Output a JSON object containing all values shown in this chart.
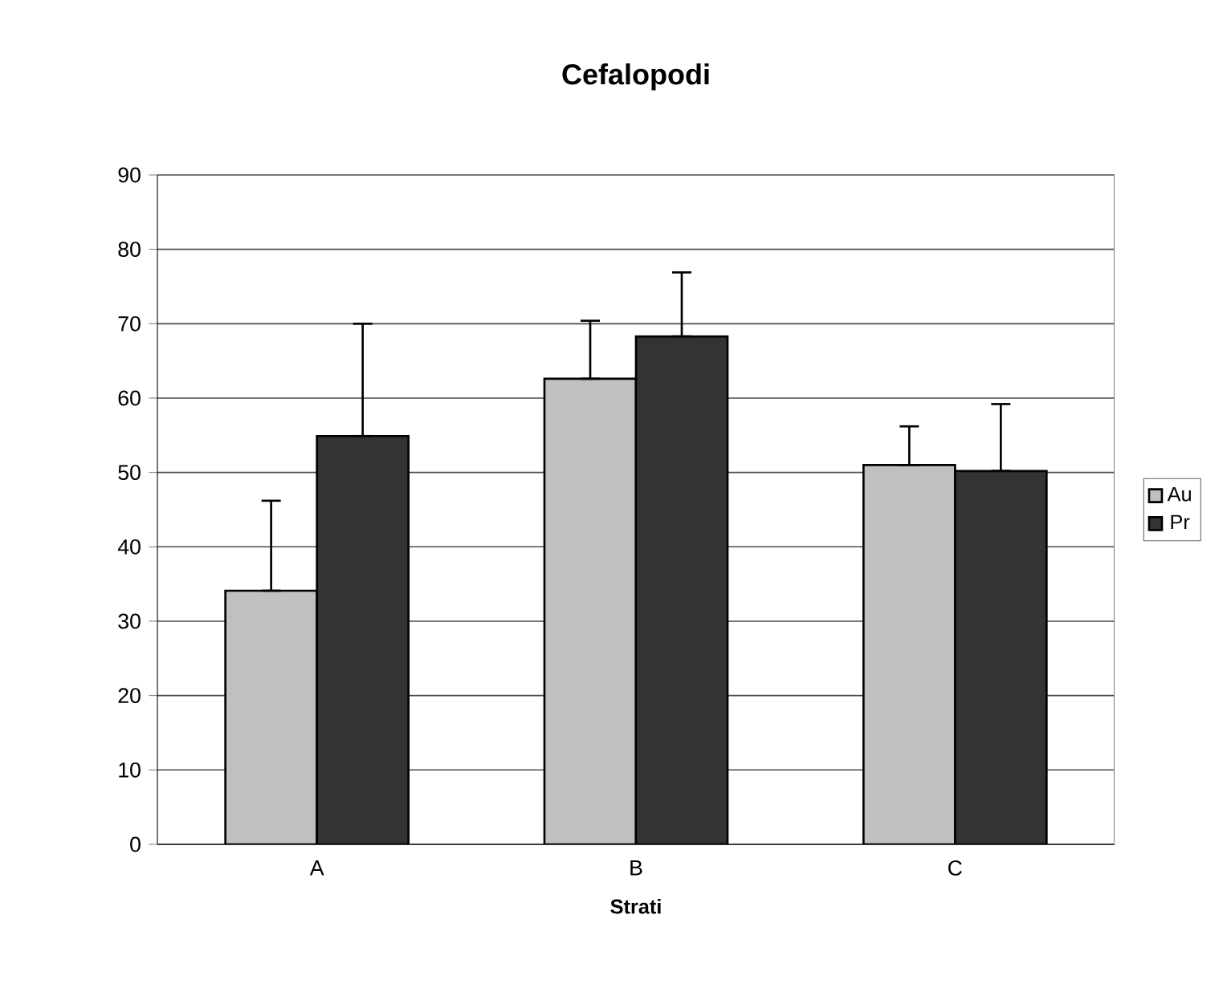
{
  "chart_data": {
    "type": "bar",
    "title": "Cefalopodi",
    "xlabel": "Strati",
    "categories": [
      "A",
      "B",
      "C"
    ],
    "series": [
      {
        "name": "Au",
        "color": "#c0c0c0",
        "values": [
          34.1,
          62.6,
          51.0
        ],
        "errors": [
          [
            34.1,
            46.2
          ],
          [
            62.6,
            70.4
          ],
          [
            51.0,
            56.2
          ]
        ]
      },
      {
        "name": "Pr",
        "color": "#333333",
        "values": [
          54.9,
          68.3,
          50.2
        ],
        "errors": [
          [
            54.9,
            70.0
          ],
          [
            68.3,
            76.9
          ],
          [
            50.2,
            59.2
          ]
        ]
      }
    ],
    "ylim": [
      0,
      90
    ],
    "yticks": [
      0,
      10,
      20,
      30,
      40,
      50,
      60,
      70,
      80,
      90
    ],
    "grid": "y",
    "legend": "right"
  }
}
